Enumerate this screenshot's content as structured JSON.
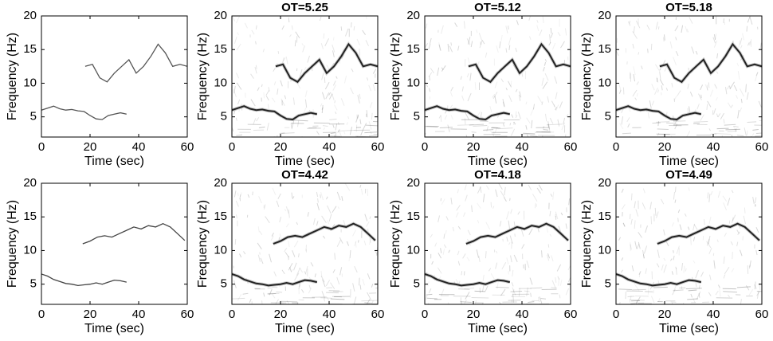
{
  "chart_data": [
    {
      "type": "line",
      "xlabel": "Time (sec)",
      "ylabel": "Frequency (Hz)",
      "xlim": [
        0,
        60
      ],
      "ylim": [
        2,
        20
      ],
      "xticks": [
        0,
        20,
        40,
        60
      ],
      "yticks": [
        5,
        10,
        15,
        20
      ],
      "series": [
        {
          "color": "#555555",
          "x": [
            0,
            2.5,
            5,
            7.5,
            10,
            12.5,
            15,
            17.5,
            20,
            22.5,
            25,
            27.5,
            30,
            32.5,
            35
          ],
          "values": [
            6.0,
            6.3,
            6.6,
            6.2,
            6.0,
            6.1,
            5.9,
            5.8,
            5.2,
            4.7,
            4.6,
            5.2,
            5.4,
            5.6,
            5.4
          ]
        },
        {
          "color": "#555555",
          "x": [
            18,
            21,
            24,
            27,
            30,
            33,
            36,
            39,
            42,
            45,
            48,
            51,
            54,
            57,
            60
          ],
          "values": [
            12.5,
            12.8,
            10.8,
            10.2,
            11.5,
            12.5,
            13.5,
            11.5,
            12.5,
            14.0,
            15.8,
            14.5,
            12.5,
            12.8,
            12.5
          ]
        }
      ]
    },
    {
      "type": "spectrogram",
      "title": "OT=5.25",
      "xlabel": "Time (sec)",
      "ylabel": "Frequency (Hz)",
      "xlim": [
        0,
        60
      ],
      "ylim": [
        2,
        20
      ],
      "xticks": [
        0,
        20,
        40,
        60
      ],
      "yticks": [
        5,
        10,
        15,
        20
      ],
      "series": [
        {
          "color": "#222222",
          "x": [
            0,
            2.5,
            5,
            7.5,
            10,
            12.5,
            15,
            17.5,
            20,
            22.5,
            25,
            27.5,
            30,
            32.5,
            35
          ],
          "values": [
            6.0,
            6.3,
            6.6,
            6.2,
            6.0,
            6.1,
            5.9,
            5.8,
            5.2,
            4.7,
            4.6,
            5.2,
            5.4,
            5.6,
            5.4
          ]
        },
        {
          "color": "#222222",
          "x": [
            18,
            21,
            24,
            27,
            30,
            33,
            36,
            39,
            42,
            45,
            48,
            51,
            54,
            57,
            60
          ],
          "values": [
            12.5,
            12.8,
            10.8,
            10.2,
            11.5,
            12.5,
            13.5,
            11.5,
            12.5,
            14.0,
            15.8,
            14.5,
            12.5,
            12.8,
            12.5
          ]
        }
      ]
    },
    {
      "type": "spectrogram",
      "title": "OT=5.12",
      "xlabel": "Time (sec)",
      "ylabel": "Frequency (Hz)",
      "xlim": [
        0,
        60
      ],
      "ylim": [
        2,
        20
      ],
      "xticks": [
        0,
        20,
        40,
        60
      ],
      "yticks": [
        5,
        10,
        15,
        20
      ],
      "series": [
        {
          "color": "#222222",
          "x": [
            0,
            2.5,
            5,
            7.5,
            10,
            12.5,
            15,
            17.5,
            20,
            22.5,
            25,
            27.5,
            30,
            32.5,
            35
          ],
          "values": [
            6.0,
            6.3,
            6.6,
            6.2,
            6.0,
            6.1,
            5.9,
            5.8,
            5.2,
            4.7,
            4.6,
            5.2,
            5.4,
            5.6,
            5.4
          ]
        },
        {
          "color": "#222222",
          "x": [
            18,
            21,
            24,
            27,
            30,
            33,
            36,
            39,
            42,
            45,
            48,
            51,
            54,
            57,
            60
          ],
          "values": [
            12.5,
            12.8,
            10.8,
            10.2,
            11.5,
            12.5,
            13.5,
            11.5,
            12.5,
            14.0,
            15.8,
            14.5,
            12.5,
            12.8,
            12.5
          ]
        }
      ]
    },
    {
      "type": "spectrogram",
      "title": "OT=5.18",
      "xlabel": "Time (sec)",
      "ylabel": "Frequency (Hz)",
      "xlim": [
        0,
        60
      ],
      "ylim": [
        2,
        20
      ],
      "xticks": [
        0,
        20,
        40,
        60
      ],
      "yticks": [
        5,
        10,
        15,
        20
      ],
      "series": [
        {
          "color": "#222222",
          "x": [
            0,
            2.5,
            5,
            7.5,
            10,
            12.5,
            15,
            17.5,
            20,
            22.5,
            25,
            27.5,
            30,
            32.5,
            35
          ],
          "values": [
            6.0,
            6.3,
            6.6,
            6.2,
            6.0,
            6.1,
            5.9,
            5.8,
            5.2,
            4.7,
            4.6,
            5.2,
            5.4,
            5.6,
            5.4
          ]
        },
        {
          "color": "#222222",
          "x": [
            18,
            21,
            24,
            27,
            30,
            33,
            36,
            39,
            42,
            45,
            48,
            51,
            54,
            57,
            60
          ],
          "values": [
            12.5,
            12.8,
            10.8,
            10.2,
            11.5,
            12.5,
            13.5,
            11.5,
            12.5,
            14.0,
            15.8,
            14.5,
            12.5,
            12.8,
            12.5
          ]
        }
      ]
    },
    {
      "type": "line",
      "xlabel": "Time (sec)",
      "ylabel": "Frequency (Hz)",
      "xlim": [
        0,
        60
      ],
      "ylim": [
        2,
        20
      ],
      "xticks": [
        0,
        20,
        40,
        60
      ],
      "yticks": [
        5,
        10,
        15,
        20
      ],
      "series": [
        {
          "color": "#444444",
          "x": [
            0,
            2.5,
            5,
            7.5,
            10,
            12.5,
            15,
            17.5,
            20,
            22.5,
            25,
            27.5,
            30,
            32.5,
            35
          ],
          "values": [
            6.5,
            6.2,
            5.7,
            5.4,
            5.1,
            5.0,
            4.8,
            4.9,
            5.0,
            5.2,
            5.0,
            5.3,
            5.6,
            5.5,
            5.3
          ]
        },
        {
          "color": "#444444",
          "x": [
            17,
            20,
            23,
            26,
            29,
            32,
            35,
            38,
            41,
            44,
            47,
            50,
            53,
            56,
            59
          ],
          "values": [
            11.0,
            11.4,
            12.0,
            12.2,
            12.0,
            12.5,
            13.0,
            13.5,
            13.2,
            13.7,
            13.5,
            14.0,
            13.5,
            12.5,
            11.5
          ]
        }
      ]
    },
    {
      "type": "spectrogram",
      "title": "OT=4.42",
      "xlabel": "Time (sec)",
      "ylabel": "Frequency (Hz)",
      "xlim": [
        0,
        60
      ],
      "ylim": [
        2,
        20
      ],
      "xticks": [
        0,
        20,
        40,
        60
      ],
      "yticks": [
        5,
        10,
        15,
        20
      ],
      "series": [
        {
          "color": "#222222",
          "x": [
            0,
            2.5,
            5,
            7.5,
            10,
            12.5,
            15,
            17.5,
            20,
            22.5,
            25,
            27.5,
            30,
            32.5,
            35
          ],
          "values": [
            6.5,
            6.2,
            5.7,
            5.4,
            5.1,
            5.0,
            4.8,
            4.9,
            5.0,
            5.2,
            5.0,
            5.3,
            5.6,
            5.5,
            5.3
          ]
        },
        {
          "color": "#222222",
          "x": [
            17,
            20,
            23,
            26,
            29,
            32,
            35,
            38,
            41,
            44,
            47,
            50,
            53,
            56,
            59
          ],
          "values": [
            11.0,
            11.4,
            12.0,
            12.2,
            12.0,
            12.5,
            13.0,
            13.5,
            13.2,
            13.7,
            13.5,
            14.0,
            13.5,
            12.5,
            11.5
          ]
        }
      ]
    },
    {
      "type": "spectrogram",
      "title": "OT=4.18",
      "xlabel": "Time (sec)",
      "ylabel": "Frequency (Hz)",
      "xlim": [
        0,
        60
      ],
      "ylim": [
        2,
        20
      ],
      "xticks": [
        0,
        20,
        40,
        60
      ],
      "yticks": [
        5,
        10,
        15,
        20
      ],
      "series": [
        {
          "color": "#222222",
          "x": [
            0,
            2.5,
            5,
            7.5,
            10,
            12.5,
            15,
            17.5,
            20,
            22.5,
            25,
            27.5,
            30,
            32.5,
            35
          ],
          "values": [
            6.5,
            6.2,
            5.7,
            5.4,
            5.1,
            5.0,
            4.8,
            4.9,
            5.0,
            5.2,
            5.0,
            5.3,
            5.6,
            5.5,
            5.3
          ]
        },
        {
          "color": "#222222",
          "x": [
            17,
            20,
            23,
            26,
            29,
            32,
            35,
            38,
            41,
            44,
            47,
            50,
            53,
            56,
            59
          ],
          "values": [
            11.0,
            11.4,
            12.0,
            12.2,
            12.0,
            12.5,
            13.0,
            13.5,
            13.2,
            13.7,
            13.5,
            14.0,
            13.5,
            12.5,
            11.5
          ]
        }
      ]
    },
    {
      "type": "spectrogram",
      "title": "OT=4.49",
      "xlabel": "Time (sec)",
      "ylabel": "Frequency (Hz)",
      "xlim": [
        0,
        60
      ],
      "ylim": [
        2,
        20
      ],
      "xticks": [
        0,
        20,
        40,
        60
      ],
      "yticks": [
        5,
        10,
        15,
        20
      ],
      "series": [
        {
          "color": "#222222",
          "x": [
            0,
            2.5,
            5,
            7.5,
            10,
            12.5,
            15,
            17.5,
            20,
            22.5,
            25,
            27.5,
            30,
            32.5,
            35
          ],
          "values": [
            6.5,
            6.2,
            5.7,
            5.4,
            5.1,
            5.0,
            4.8,
            4.9,
            5.0,
            5.2,
            5.0,
            5.3,
            5.6,
            5.5,
            5.3
          ]
        },
        {
          "color": "#222222",
          "x": [
            17,
            20,
            23,
            26,
            29,
            32,
            35,
            38,
            41,
            44,
            47,
            50,
            53,
            56,
            59
          ],
          "values": [
            11.0,
            11.4,
            12.0,
            12.2,
            12.0,
            12.5,
            13.0,
            13.5,
            13.2,
            13.7,
            13.5,
            14.0,
            13.5,
            12.5,
            11.5
          ]
        }
      ]
    }
  ]
}
